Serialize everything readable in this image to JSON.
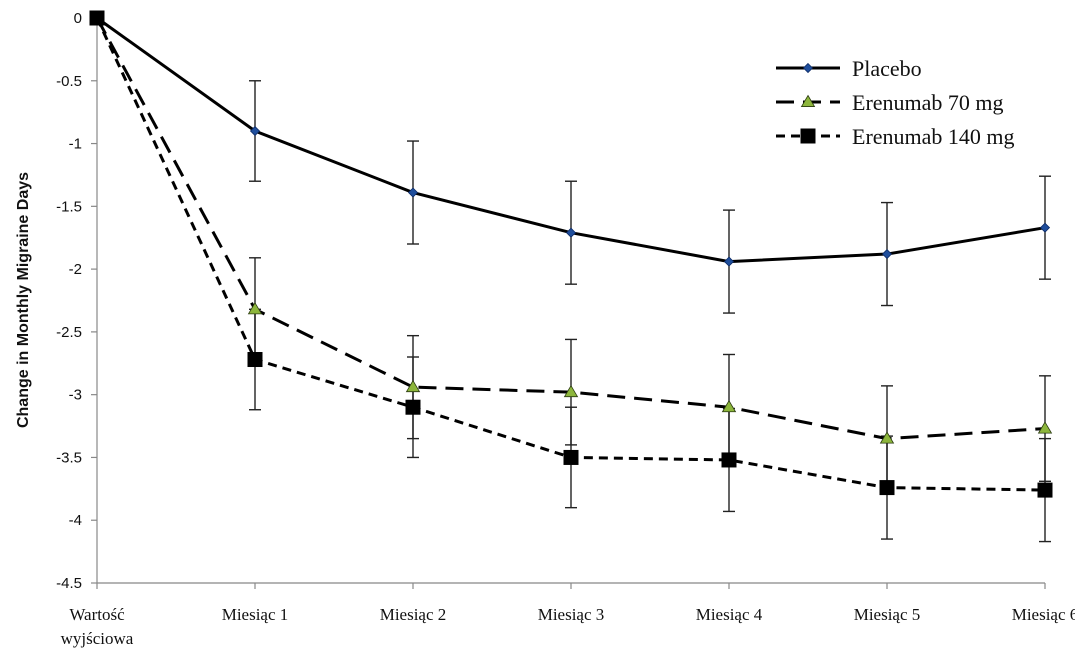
{
  "chart_data": {
    "type": "line",
    "title": "",
    "xlabel": "",
    "ylabel": "Change in Monthly Migraine Days",
    "ylim": [
      -4.5,
      0
    ],
    "yticks": [
      0,
      -0.5,
      -1,
      -1.5,
      -2,
      -2.5,
      -3,
      -3.5,
      -4,
      -4.5
    ],
    "ytick_labels": [
      "0",
      "-0.5",
      "-1",
      "-1.5",
      "-2",
      "-2.5",
      "-3",
      "-3.5",
      "-4",
      "-4.5"
    ],
    "categories": [
      [
        "Wartość",
        "wyjściowa"
      ],
      [
        "Miesiąc 1"
      ],
      [
        "Miesiąc 2"
      ],
      [
        "Miesiąc 3"
      ],
      [
        "Miesiąc 4"
      ],
      [
        "Miesiąc 5"
      ],
      [
        "Miesiąc 6"
      ]
    ],
    "grid": false,
    "legend_position": "top-right",
    "series": [
      {
        "name": "Placebo",
        "style": "solid",
        "marker": "diamond",
        "marker_color": "#1f4e9c",
        "values": [
          0,
          -0.9,
          -1.39,
          -1.71,
          -1.94,
          -1.88,
          -1.67
        ],
        "error": [
          0,
          0.4,
          0.41,
          0.41,
          0.41,
          0.41,
          0.41
        ]
      },
      {
        "name": "Erenumab 70 mg",
        "style": "long-dash",
        "marker": "triangle",
        "marker_color": "#8db63c",
        "values": [
          0,
          -2.32,
          -2.94,
          -2.98,
          -3.1,
          -3.35,
          -3.27
        ],
        "error": [
          0,
          0.41,
          0.41,
          0.42,
          0.42,
          0.42,
          0.42
        ]
      },
      {
        "name": "Erenumab 140 mg",
        "style": "short-dash",
        "marker": "square",
        "marker_color": "#000000",
        "values": [
          0,
          -2.72,
          -3.1,
          -3.5,
          -3.52,
          -3.74,
          -3.76
        ],
        "error": [
          0,
          0.4,
          0.4,
          0.4,
          0.41,
          0.41,
          0.41
        ]
      }
    ]
  }
}
